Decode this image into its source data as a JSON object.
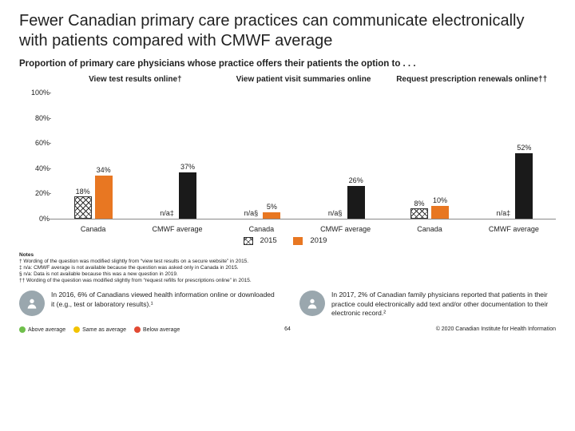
{
  "title": "Fewer Canadian primary care practices can communicate electronically with patients compared with CMWF average",
  "subtitle": "Proportion of primary care physicians whose practice offers their patients the option to . . .",
  "chart": {
    "type": "bar",
    "ymax": 100,
    "ytick_step": 20,
    "yticks": [
      "100%",
      "80%",
      "60%",
      "40%",
      "20%",
      "0%"
    ],
    "colors": {
      "series_2015_fill": "hatch",
      "series_2019_fill": "#e87722",
      "series_black_fill": "#1a1a1a",
      "axis_color": "#888888",
      "text_color": "#222222"
    },
    "panels": [
      {
        "title": "View test results online†",
        "groups": [
          {
            "label": "Canada",
            "bars": [
              {
                "value": 18,
                "text": "18%",
                "style": "hatch"
              },
              {
                "value": 34,
                "text": "34%",
                "style": "orange"
              }
            ]
          },
          {
            "label": "CMWF average",
            "bars": [
              {
                "value": 0,
                "text": "n/a‡",
                "style": "none"
              },
              {
                "value": 37,
                "text": "37%",
                "style": "black"
              }
            ]
          }
        ]
      },
      {
        "title": "View patient visit summaries online",
        "groups": [
          {
            "label": "Canada",
            "bars": [
              {
                "value": 0,
                "text": "n/a§",
                "style": "none"
              },
              {
                "value": 5,
                "text": "5%",
                "style": "orange"
              }
            ]
          },
          {
            "label": "CMWF average",
            "bars": [
              {
                "value": 0,
                "text": "n/a§",
                "style": "none"
              },
              {
                "value": 26,
                "text": "26%",
                "style": "black"
              }
            ]
          }
        ]
      },
      {
        "title": "Request prescription renewals online††",
        "groups": [
          {
            "label": "Canada",
            "bars": [
              {
                "value": 8,
                "text": "8%",
                "style": "hatch"
              },
              {
                "value": 10,
                "text": "10%",
                "style": "orange"
              }
            ]
          },
          {
            "label": "CMWF average",
            "bars": [
              {
                "value": 0,
                "text": "n/a‡",
                "style": "none"
              },
              {
                "value": 52,
                "text": "52%",
                "style": "black"
              }
            ]
          }
        ]
      }
    ]
  },
  "legend": {
    "a_label": "2015",
    "b_label": "2019"
  },
  "notes": {
    "heading": "Notes",
    "lines": [
      "† Wording of the question was modified slightly from “view test results on a secure website” in 2015.",
      "‡ n/a: CMWF average is not available because the question was asked only in Canada in 2015.",
      "§ n/a: Data is not available because this was a new question in 2019.",
      "†† Wording of the question was modified slightly from “request refills for prescriptions online” in 2015."
    ]
  },
  "callouts": [
    {
      "icon": "person",
      "text": "In 2016, 6% of Canadians viewed health information online or downloaded it (e.g., test or laboratory results).¹"
    },
    {
      "icon": "person",
      "text": "In 2017, 2% of Canadian family physicians reported that patients in their practice could electronically add text and/or other documentation to their electronic record.²"
    }
  ],
  "performance": {
    "above": {
      "label": "Above average",
      "color": "#6fbf4b"
    },
    "same": {
      "label": "Same as average",
      "color": "#f2c300"
    },
    "below": {
      "label": "Below average",
      "color": "#e24a33"
    }
  },
  "page_number": "64",
  "copyright": "© 2020 Canadian Institute for Health Information"
}
